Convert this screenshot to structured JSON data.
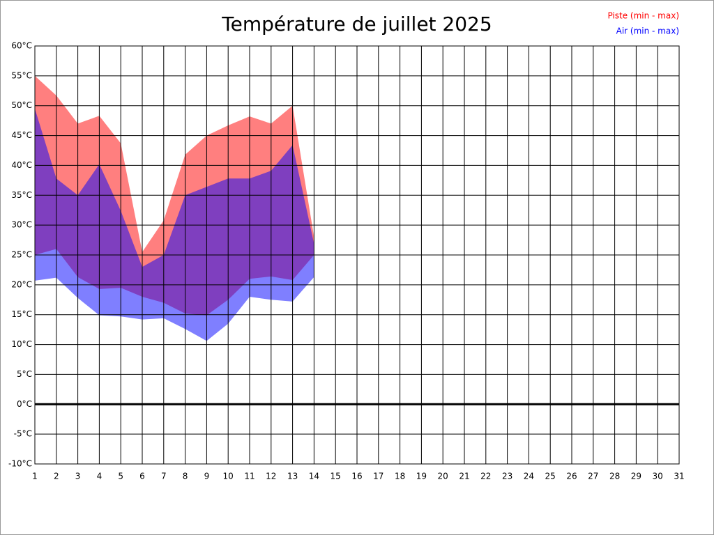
{
  "chart_data": {
    "type": "range-area",
    "title": "Température de juillet 2025",
    "x": [
      1,
      2,
      3,
      4,
      5,
      6,
      7,
      8,
      9,
      10,
      11,
      12,
      13,
      14
    ],
    "xlim": [
      1,
      31
    ],
    "xticks": [
      1,
      2,
      3,
      4,
      5,
      6,
      7,
      8,
      9,
      10,
      11,
      12,
      13,
      14,
      15,
      16,
      17,
      18,
      19,
      20,
      21,
      22,
      23,
      24,
      25,
      26,
      27,
      28,
      29,
      30,
      31
    ],
    "ylim": [
      -10,
      60
    ],
    "yticks": [
      {
        "value": -10,
        "label": "-10°C"
      },
      {
        "value": -5,
        "label": "-5°C"
      },
      {
        "value": 0,
        "label": "0°C"
      },
      {
        "value": 5,
        "label": "5°C"
      },
      {
        "value": 10,
        "label": "10°C"
      },
      {
        "value": 15,
        "label": "15°C"
      },
      {
        "value": 20,
        "label": "20°C"
      },
      {
        "value": 25,
        "label": "25°C"
      },
      {
        "value": 30,
        "label": "30°C"
      },
      {
        "value": 35,
        "label": "35°C"
      },
      {
        "value": 40,
        "label": "40°C"
      },
      {
        "value": 45,
        "label": "45°C"
      },
      {
        "value": 50,
        "label": "50°C"
      },
      {
        "value": 55,
        "label": "55°C"
      },
      {
        "value": 60,
        "label": "60°C"
      }
    ],
    "grid": true,
    "legend": "top-right",
    "series": [
      {
        "name": "Piste (min - max)",
        "color": "#ff0000",
        "low": [
          25,
          26,
          21.3,
          19.3,
          19.5,
          18,
          17,
          15.2,
          14.9,
          17.5,
          21,
          21.4,
          20.8,
          25
        ],
        "high": [
          55,
          51.7,
          47,
          48.3,
          43.7,
          25.5,
          30.8,
          41.8,
          45,
          46.7,
          48.2,
          47,
          50,
          28
        ]
      },
      {
        "name": "Air (min - max)",
        "color": "#0000ff",
        "low": [
          20.7,
          21.2,
          17.8,
          14.9,
          14.7,
          14.2,
          14.4,
          12.6,
          10.6,
          13.5,
          18,
          17.5,
          17.2,
          21.3
        ],
        "high": [
          49.5,
          37.8,
          35,
          40.2,
          32.4,
          23,
          25,
          35,
          36.4,
          37.8,
          37.8,
          39.1,
          43.4,
          26.9
        ]
      }
    ]
  }
}
